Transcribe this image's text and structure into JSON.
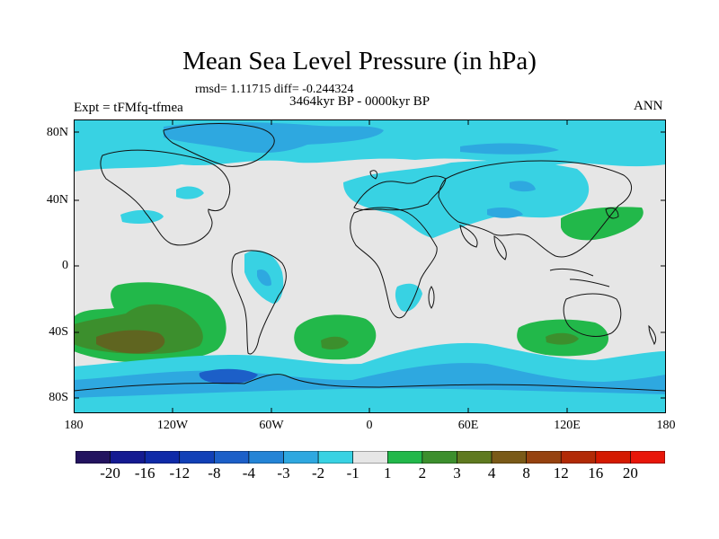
{
  "header": {
    "title": "Mean Sea Level Pressure (in hPa)",
    "stats": "rmsd= 1.11715 diff= -0.244324",
    "period": "3464kyr BP - 0000kyr BP",
    "experiment": "Expt = tFMfq-tfmea",
    "season": "ANN"
  },
  "axes": {
    "lat_labels": [
      "80N",
      "40N",
      "0",
      "40S",
      "80S"
    ],
    "lon_labels": [
      "180",
      "120W",
      "60W",
      "0",
      "60E",
      "120E",
      "180"
    ]
  },
  "colorbar": {
    "labels": [
      "-20",
      "-16",
      "-12",
      "-8",
      "-4",
      "-3",
      "-2",
      "-1",
      "1",
      "2",
      "3",
      "4",
      "8",
      "12",
      "16",
      "20"
    ],
    "colors": [
      "#23135f",
      "#141a91",
      "#0f2aa8",
      "#1140b7",
      "#1c5fc8",
      "#2484d6",
      "#2ea8e0",
      "#38d2e3",
      "#e6e6e6",
      "#22b84a",
      "#3c8f2d",
      "#5f7a20",
      "#7a5a18",
      "#96420f",
      "#b22a06",
      "#d41a00",
      "#e8160a"
    ]
  },
  "palette": {
    "neutral": "#e6e6e6",
    "light_neg": "#38d2e3",
    "mid_neg": "#2ea8e0",
    "deep_neg": "#1c5fc8",
    "light_pos": "#22b84a",
    "mid_pos": "#3c8f2d",
    "deep_pos": "#5f6520"
  }
}
